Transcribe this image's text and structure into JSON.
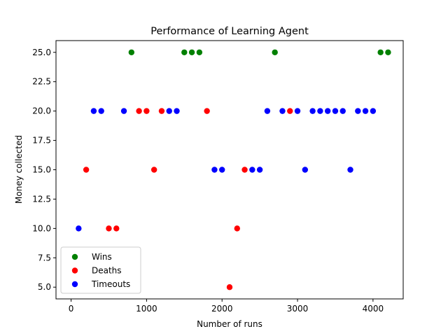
{
  "chart_data": {
    "type": "scatter",
    "title": "Performance of Learning Agent",
    "xlabel": "Number of runs",
    "ylabel": "Money collected",
    "xlim": [
      -200,
      4400
    ],
    "ylim": [
      4.0,
      26.0
    ],
    "xticks": [
      0,
      1000,
      2000,
      3000,
      4000
    ],
    "xtick_labels": [
      "0",
      "1000",
      "2000",
      "3000",
      "4000"
    ],
    "yticks": [
      5.0,
      7.5,
      10.0,
      12.5,
      15.0,
      17.5,
      20.0,
      22.5,
      25.0
    ],
    "ytick_labels": [
      "5.0",
      "7.5",
      "10.0",
      "12.5",
      "15.0",
      "17.5",
      "20.0",
      "22.5",
      "25.0"
    ],
    "grid": false,
    "legend_position": "lower-left",
    "series": [
      {
        "name": "Wins",
        "color": "#008000",
        "x": [
          800,
          1500,
          1600,
          1700,
          2700,
          4100,
          4200
        ],
        "y": [
          25,
          25,
          25,
          25,
          25,
          25,
          25
        ]
      },
      {
        "name": "Deaths",
        "color": "#ff0000",
        "x": [
          200,
          500,
          600,
          900,
          1000,
          1100,
          1200,
          1800,
          2100,
          2200,
          2300,
          2900
        ],
        "y": [
          15,
          10,
          10,
          20,
          20,
          15,
          20,
          20,
          5,
          10,
          15,
          20
        ]
      },
      {
        "name": "Timeouts",
        "color": "#0000ff",
        "x": [
          100,
          300,
          400,
          700,
          1300,
          1400,
          1900,
          2000,
          2400,
          2500,
          2600,
          2800,
          3000,
          3100,
          3200,
          3300,
          3400,
          3500,
          3600,
          3700,
          3800,
          3900,
          4000
        ],
        "y": [
          10,
          20,
          20,
          20,
          20,
          20,
          15,
          15,
          15,
          15,
          20,
          20,
          20,
          15,
          20,
          20,
          20,
          20,
          20,
          15,
          20,
          20,
          20
        ]
      }
    ]
  }
}
